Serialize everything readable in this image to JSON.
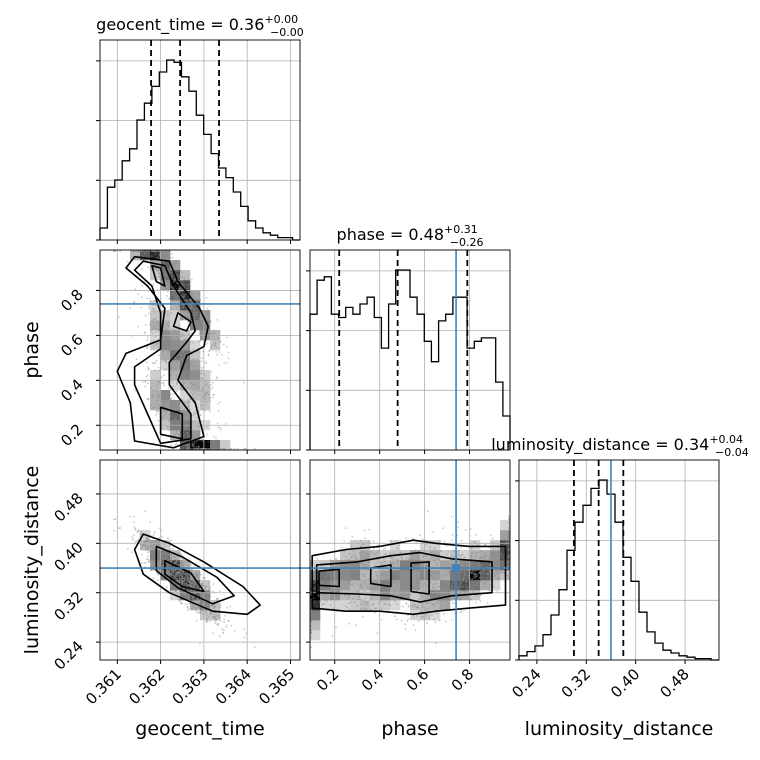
{
  "chart_data": {
    "type": "corner",
    "parameters": [
      "geocent_time",
      "phase",
      "luminosity_distance"
    ],
    "truth": {
      "phase": 0.74,
      "luminosity_distance": 0.36
    },
    "titles": [
      {
        "param": "geocent_time",
        "prefix": "geocent_time = 0.36",
        "plus": "+0.00",
        "minus": "−0.00"
      },
      {
        "param": "phase",
        "prefix": "phase = 0.48",
        "plus": "+0.31",
        "minus": "−0.26"
      },
      {
        "param": "luminosity_distance",
        "prefix": "luminosity_distance = 0.34",
        "plus": "+0.04",
        "minus": "−0.04"
      }
    ],
    "ranges": {
      "geocent_time": [
        0.3606,
        0.36522
      ],
      "phase": [
        0.09,
        0.98
      ],
      "luminosity_distance": [
        0.211,
        0.535
      ]
    },
    "ticks": {
      "geocent_time": [
        "0.361",
        "0.362",
        "0.363",
        "0.364",
        "0.365"
      ],
      "phase": [
        "0.2",
        "0.4",
        "0.6",
        "0.8"
      ],
      "luminosity_distance": [
        "0.24",
        "0.32",
        "0.40",
        "0.48"
      ]
    },
    "tick_values": {
      "geocent_time": [
        0.361,
        0.362,
        0.363,
        0.364,
        0.365
      ],
      "phase": [
        0.2,
        0.4,
        0.6,
        0.8
      ],
      "luminosity_distance": [
        0.24,
        0.32,
        0.4,
        0.48
      ]
    },
    "quantiles": {
      "geocent_time": [
        0.36178,
        0.36245,
        0.36335
      ],
      "phase": [
        0.22,
        0.48,
        0.79
      ],
      "luminosity_distance": [
        0.3,
        0.34,
        0.38
      ]
    },
    "histograms": {
      "geocent_time": [
        5,
        22,
        25,
        33,
        38,
        50,
        57,
        64,
        70,
        75,
        74,
        68,
        62,
        52,
        44,
        36,
        30,
        26,
        20,
        14,
        8,
        5,
        3,
        2,
        1,
        1,
        0
      ],
      "phase": [
        40,
        50,
        51,
        40,
        39,
        42,
        40,
        43,
        45,
        39,
        30,
        43,
        53,
        53,
        45,
        40,
        32,
        26,
        38,
        40,
        45,
        45,
        30,
        32,
        33,
        33,
        20,
        10
      ],
      "luminosity_distance": [
        3,
        6,
        10,
        18,
        32,
        50,
        78,
        98,
        110,
        122,
        128,
        118,
        98,
        73,
        56,
        34,
        20,
        12,
        7,
        5,
        3,
        2,
        1,
        1,
        0
      ]
    },
    "grid": true
  }
}
